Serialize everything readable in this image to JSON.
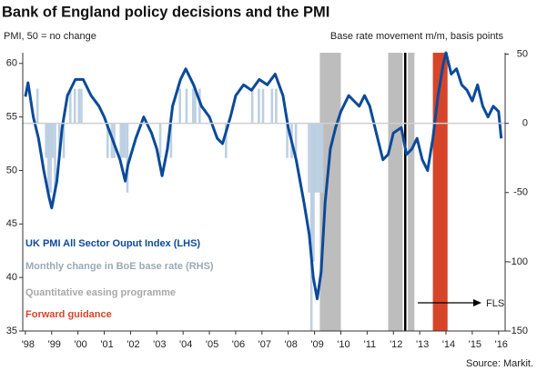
{
  "chart_data": {
    "type": "line",
    "title": "Bank of England policy decisions and the PMI",
    "subtitle_left": "PMI, 50 = no change",
    "subtitle_right": "Base rate movement  m/m, basis points",
    "source": "Source: Markit.",
    "xlim": [
      1997.9,
      2016.25
    ],
    "xticks": [
      {
        "value": 1998,
        "label": "'98"
      },
      {
        "value": 1999,
        "label": "'99"
      },
      {
        "value": 2000,
        "label": "'00"
      },
      {
        "value": 2001,
        "label": "'01"
      },
      {
        "value": 2002,
        "label": "'02"
      },
      {
        "value": 2003,
        "label": "'03"
      },
      {
        "value": 2004,
        "label": "'04"
      },
      {
        "value": 2005,
        "label": "'05"
      },
      {
        "value": 2006,
        "label": "'06"
      },
      {
        "value": 2007,
        "label": "'07"
      },
      {
        "value": 2008,
        "label": "'08"
      },
      {
        "value": 2009,
        "label": "'09"
      },
      {
        "value": 2010,
        "label": "'10"
      },
      {
        "value": 2011,
        "label": "'11"
      },
      {
        "value": 2012,
        "label": "'12"
      },
      {
        "value": 2013,
        "label": "'13"
      },
      {
        "value": 2014,
        "label": "'14"
      },
      {
        "value": 2015,
        "label": "'15"
      },
      {
        "value": 2016,
        "label": "'16"
      }
    ],
    "ylim": [
      35,
      61
    ],
    "yticks": [
      35,
      40,
      45,
      50,
      55,
      60
    ],
    "y2lim": [
      -150,
      51
    ],
    "y2ticks": [
      50,
      0,
      -50,
      -100,
      -150
    ],
    "series": [
      {
        "name": "UK PMI All  Sector Ouput Index (LHS)",
        "color": "#0b4a99",
        "type": "line",
        "x": [
          1998.0,
          1998.1,
          1998.3,
          1998.5,
          1998.7,
          1998.9,
          1999.0,
          1999.2,
          1999.4,
          1999.6,
          1999.9,
          2000.2,
          2000.5,
          2000.8,
          2001.0,
          2001.3,
          2001.6,
          2001.8,
          2001.9,
          2002.2,
          2002.5,
          2002.8,
          2003.0,
          2003.2,
          2003.4,
          2003.6,
          2003.9,
          2004.1,
          2004.4,
          2004.7,
          2005.0,
          2005.3,
          2005.5,
          2005.8,
          2006.0,
          2006.3,
          2006.6,
          2006.9,
          2007.2,
          2007.5,
          2007.8,
          2008.0,
          2008.3,
          2008.6,
          2008.8,
          2008.95,
          2009.1,
          2009.25,
          2009.4,
          2009.6,
          2009.8,
          2010.0,
          2010.3,
          2010.5,
          2010.7,
          2010.9,
          2011.1,
          2011.3,
          2011.6,
          2011.8,
          2012.0,
          2012.3,
          2012.5,
          2012.7,
          2012.9,
          2013.1,
          2013.3,
          2013.5,
          2013.7,
          2013.9,
          2014.0,
          2014.2,
          2014.4,
          2014.6,
          2014.8,
          2015.0,
          2015.2,
          2015.4,
          2015.6,
          2015.8,
          2016.0,
          2016.1
        ],
        "values": [
          56.9,
          58.2,
          55,
          53,
          50,
          47.5,
          46.5,
          49,
          54,
          57,
          58.5,
          58.5,
          57,
          56,
          55,
          53,
          51,
          49,
          50.5,
          53,
          55,
          53.5,
          52,
          49.5,
          52,
          56,
          58.5,
          59.5,
          58,
          56,
          55,
          53,
          52.5,
          55,
          57,
          58,
          57.5,
          58.5,
          58,
          59,
          57,
          54,
          51,
          47,
          44,
          40,
          38,
          40.5,
          47,
          52,
          54,
          55.5,
          57,
          56.5,
          56,
          57,
          56,
          54,
          51,
          51.5,
          53.5,
          54,
          51.5,
          52,
          53,
          51,
          50,
          53,
          57,
          60,
          61,
          59,
          59.5,
          58,
          57.5,
          56.5,
          58,
          56,
          55,
          56,
          55.5,
          53
        ]
      },
      {
        "name": "Monthly change in BoE base rate (RHS)",
        "color": "#bcd0e2",
        "type": "bar",
        "axis": "y2",
        "x": [
          1998.46,
          1998.79,
          1998.88,
          1998.96,
          1999.04,
          1999.13,
          1999.29,
          1999.46,
          1999.71,
          1999.88,
          2000.04,
          2000.13,
          2001.13,
          2001.29,
          2001.38,
          2001.63,
          2001.71,
          2001.79,
          2001.88,
          2003.13,
          2003.54,
          2003.88,
          2004.13,
          2004.38,
          2004.46,
          2004.63,
          2005.63,
          2006.63,
          2006.88,
          2007.04,
          2007.38,
          2007.54,
          2007.96,
          2008.13,
          2008.29,
          2008.79,
          2008.88,
          2008.96,
          2009.04,
          2009.13,
          2009.21,
          2009.29
        ],
        "values": [
          25,
          -25,
          -50,
          -50,
          -25,
          -50,
          -25,
          -25,
          25,
          25,
          25,
          25,
          -25,
          -25,
          -25,
          -25,
          -25,
          -25,
          -50,
          -25,
          -25,
          25,
          25,
          25,
          25,
          25,
          -25,
          25,
          25,
          25,
          25,
          25,
          -25,
          -25,
          -25,
          -50,
          -150,
          -100,
          -50,
          -50,
          -50,
          -50
        ]
      }
    ],
    "shaded": [
      {
        "name": "Quantitative easing programme",
        "color": "#bdbdbd",
        "periods": [
          [
            2009.2,
            2010.0
          ],
          [
            2011.8,
            2012.35
          ],
          [
            2012.55,
            2012.8
          ]
        ]
      },
      {
        "name": "Forward guidance",
        "color": "#d6452a",
        "periods": [
          [
            2013.5,
            2014.06
          ]
        ]
      }
    ],
    "fls": {
      "label": "FLS",
      "x": 2012.45
    }
  }
}
